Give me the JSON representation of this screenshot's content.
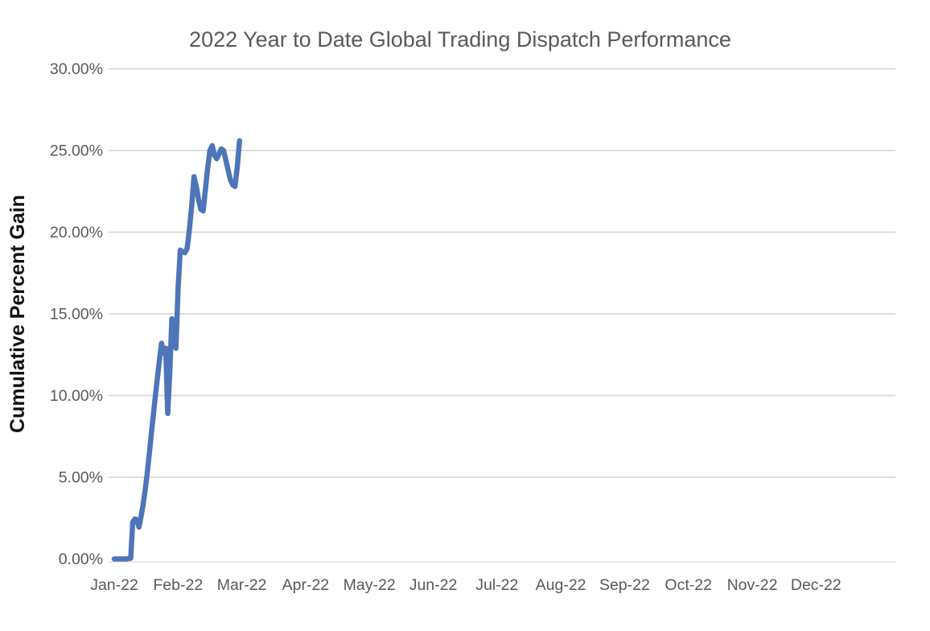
{
  "title": "2022 Year to Date Global Trading Dispatch Performance",
  "y_axis": {
    "title": "Cumulative Percent Gain",
    "tick_labels": [
      "0.00%",
      "5.00%",
      "10.00%",
      "15.00%",
      "20.00%",
      "25.00%",
      "30.00%"
    ]
  },
  "x_axis": {
    "tick_labels": [
      "Jan-22",
      "Feb-22",
      "Mar-22",
      "Apr-22",
      "May-22",
      "Jun-22",
      "Jul-22",
      "Aug-22",
      "Sep-22",
      "Oct-22",
      "Nov-22",
      "Dec-22"
    ]
  },
  "colors": {
    "line": "#4E75B8",
    "gridline": "#D9D9D9",
    "zero_line": "#E4E4E4",
    "tick_text": "#595959",
    "title_text": "#595959",
    "axis_title_text": "#111111"
  },
  "chart_data": {
    "type": "line",
    "title": "2022 Year to Date Global Trading Dispatch Performance",
    "xlabel": "",
    "ylabel": "Cumulative Percent Gain",
    "ylim": [
      0,
      30
    ],
    "y_tick_step": 5,
    "y_tick_format": "0.00%",
    "x_range": [
      "2022-01-01",
      "2022-12-31"
    ],
    "x_tick_labels": [
      "Jan-22",
      "Feb-22",
      "Mar-22",
      "Apr-22",
      "May-22",
      "Jun-22",
      "Jul-22",
      "Aug-22",
      "Sep-22",
      "Oct-22",
      "Nov-22",
      "Dec-22"
    ],
    "grid": true,
    "legend": "none",
    "series": [
      {
        "name": "Cumulative Percent Gain",
        "color": "#4E75B8",
        "points": [
          [
            "2022-01-01",
            0.0
          ],
          [
            "2022-01-04",
            0.0
          ],
          [
            "2022-01-07",
            0.0
          ],
          [
            "2022-01-09",
            0.05
          ],
          [
            "2022-01-10",
            2.25
          ],
          [
            "2022-01-11",
            2.45
          ],
          [
            "2022-01-12",
            2.4
          ],
          [
            "2022-01-13",
            1.95
          ],
          [
            "2022-01-14",
            2.6
          ],
          [
            "2022-01-15",
            3.3
          ],
          [
            "2022-01-16",
            4.2
          ],
          [
            "2022-01-17",
            5.2
          ],
          [
            "2022-01-18",
            6.4
          ],
          [
            "2022-01-19",
            7.6
          ],
          [
            "2022-01-20",
            8.8
          ],
          [
            "2022-01-21",
            10.0
          ],
          [
            "2022-01-22",
            11.1
          ],
          [
            "2022-01-23",
            12.2
          ],
          [
            "2022-01-24",
            13.2
          ],
          [
            "2022-01-25",
            12.6
          ],
          [
            "2022-01-26",
            12.9
          ],
          [
            "2022-01-27",
            8.9
          ],
          [
            "2022-01-28",
            11.5
          ],
          [
            "2022-01-29",
            14.7
          ],
          [
            "2022-01-30",
            14.5
          ],
          [
            "2022-01-31",
            12.9
          ],
          [
            "2022-02-01",
            16.5
          ],
          [
            "2022-02-02",
            18.9
          ],
          [
            "2022-02-03",
            18.8
          ],
          [
            "2022-02-04",
            18.75
          ],
          [
            "2022-02-05",
            19.0
          ],
          [
            "2022-02-06",
            20.2
          ],
          [
            "2022-02-07",
            21.6
          ],
          [
            "2022-02-08",
            23.4
          ],
          [
            "2022-02-09",
            22.8
          ],
          [
            "2022-02-10",
            22.0
          ],
          [
            "2022-02-11",
            21.4
          ],
          [
            "2022-02-12",
            21.3
          ],
          [
            "2022-02-13",
            22.6
          ],
          [
            "2022-02-14",
            23.9
          ],
          [
            "2022-02-15",
            25.0
          ],
          [
            "2022-02-16",
            25.3
          ],
          [
            "2022-02-17",
            24.7
          ],
          [
            "2022-02-18",
            24.5
          ],
          [
            "2022-02-19",
            24.8
          ],
          [
            "2022-02-20",
            25.1
          ],
          [
            "2022-02-21",
            25.0
          ],
          [
            "2022-02-22",
            24.4
          ],
          [
            "2022-02-23",
            23.8
          ],
          [
            "2022-02-24",
            23.2
          ],
          [
            "2022-02-25",
            22.9
          ],
          [
            "2022-02-26",
            22.8
          ],
          [
            "2022-02-27",
            24.0
          ],
          [
            "2022-02-28",
            25.6
          ]
        ]
      }
    ]
  }
}
